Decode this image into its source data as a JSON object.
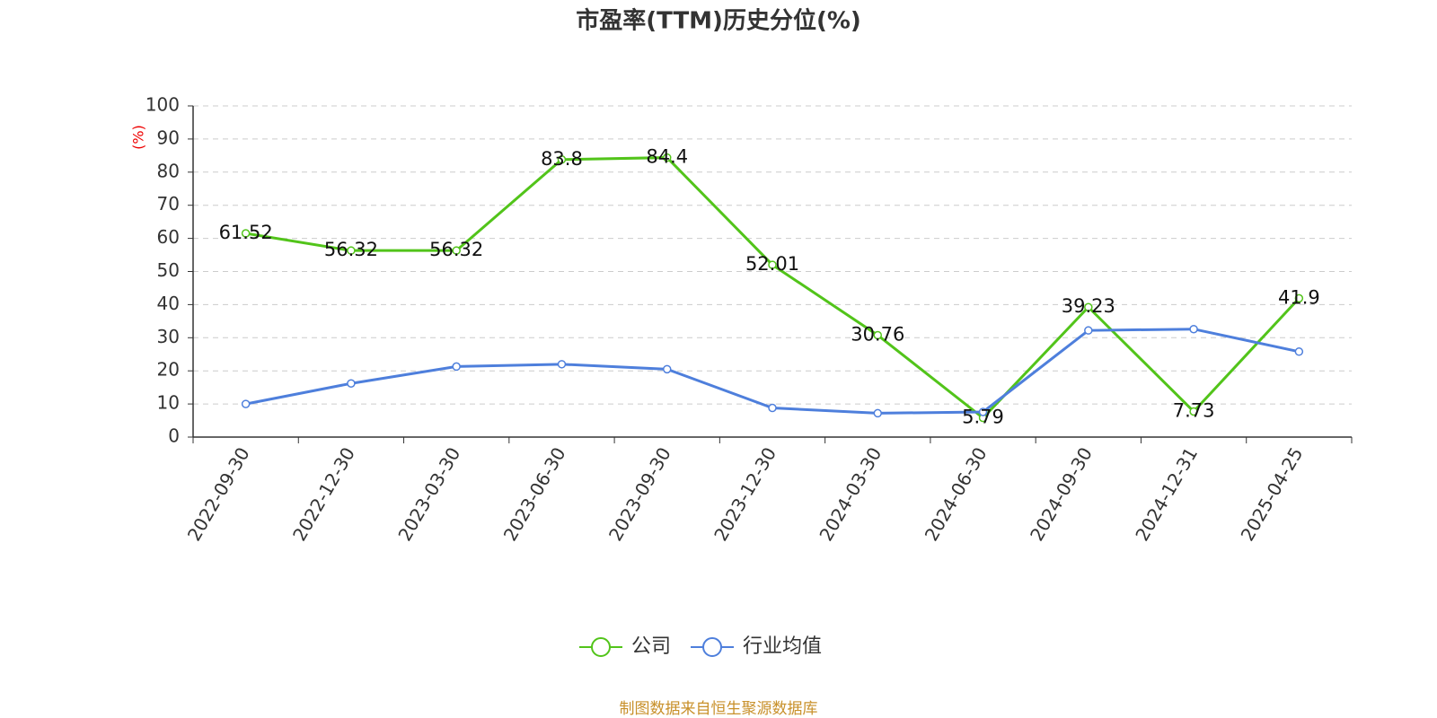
{
  "chart_data": {
    "type": "line",
    "title": "市盈率(TTM)历史分位(%)",
    "y_label": "(%)",
    "source": "制图数据来自恒生聚源数据库",
    "categories": [
      "2022-09-30",
      "2022-12-30",
      "2023-03-30",
      "2023-06-30",
      "2023-09-30",
      "2023-12-30",
      "2024-03-30",
      "2024-06-30",
      "2024-09-30",
      "2024-12-31",
      "2025-04-25"
    ],
    "series": [
      {
        "name": "公司",
        "color": "#52c41a",
        "labels": true,
        "values": [
          61.52,
          56.32,
          56.32,
          83.8,
          84.4,
          52.01,
          30.76,
          5.79,
          39.23,
          7.73,
          41.9
        ]
      },
      {
        "name": "行业均值",
        "color": "#4e7fdc",
        "labels": false,
        "values": [
          10,
          16.2,
          21.3,
          22,
          20.5,
          8.8,
          7.2,
          7.6,
          32.2,
          32.6,
          25.8
        ]
      }
    ],
    "ylim": [
      0,
      100
    ],
    "yticks": [
      0,
      10,
      20,
      30,
      40,
      50,
      60,
      70,
      80,
      90,
      100
    ],
    "grid": true
  }
}
